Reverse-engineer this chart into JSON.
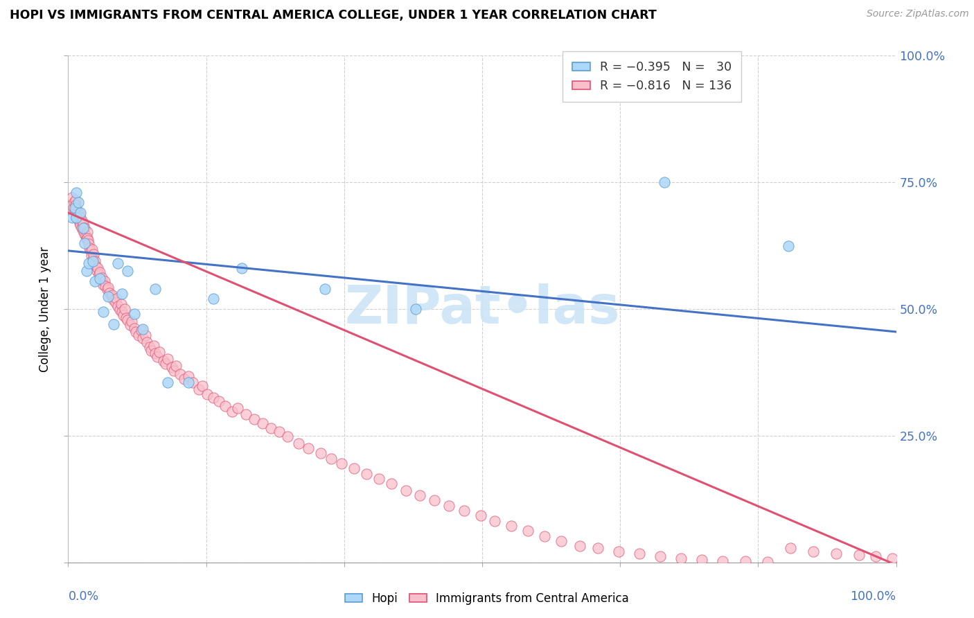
{
  "title": "HOPI VS IMMIGRANTS FROM CENTRAL AMERICA COLLEGE, UNDER 1 YEAR CORRELATION CHART",
  "source": "Source: ZipAtlas.com",
  "ylabel": "College, Under 1 year",
  "color_hopi_fill": "#add8f7",
  "color_hopi_edge": "#5b9bd5",
  "color_imm_fill": "#f9c0cb",
  "color_imm_edge": "#e05070",
  "color_line_hopi": "#4472c4",
  "color_line_imm": "#e05070",
  "color_right_axis": "#4472c4",
  "color_grid": "#d0d0d0",
  "watermark_color": "#cce4f5",
  "hopi_x": [
    0.005,
    0.008,
    0.01,
    0.01,
    0.012,
    0.015,
    0.018,
    0.02,
    0.022,
    0.025,
    0.03,
    0.032,
    0.038,
    0.042,
    0.048,
    0.055,
    0.06,
    0.065,
    0.072,
    0.08,
    0.09,
    0.105,
    0.12,
    0.145,
    0.175,
    0.21,
    0.31,
    0.42,
    0.72,
    0.87
  ],
  "hopi_y": [
    0.68,
    0.7,
    0.73,
    0.68,
    0.71,
    0.69,
    0.66,
    0.63,
    0.575,
    0.59,
    0.595,
    0.555,
    0.56,
    0.495,
    0.525,
    0.47,
    0.59,
    0.53,
    0.575,
    0.49,
    0.46,
    0.54,
    0.355,
    0.355,
    0.52,
    0.58,
    0.54,
    0.5,
    0.75,
    0.625
  ],
  "imm_x": [
    0.005,
    0.006,
    0.007,
    0.008,
    0.009,
    0.009,
    0.01,
    0.01,
    0.011,
    0.012,
    0.013,
    0.013,
    0.014,
    0.015,
    0.015,
    0.016,
    0.017,
    0.018,
    0.018,
    0.019,
    0.02,
    0.02,
    0.021,
    0.022,
    0.023,
    0.023,
    0.024,
    0.025,
    0.026,
    0.027,
    0.028,
    0.029,
    0.03,
    0.031,
    0.032,
    0.033,
    0.035,
    0.036,
    0.037,
    0.038,
    0.04,
    0.041,
    0.042,
    0.044,
    0.045,
    0.047,
    0.048,
    0.05,
    0.052,
    0.053,
    0.055,
    0.057,
    0.058,
    0.06,
    0.062,
    0.064,
    0.065,
    0.067,
    0.068,
    0.07,
    0.072,
    0.075,
    0.077,
    0.08,
    0.082,
    0.085,
    0.088,
    0.09,
    0.093,
    0.095,
    0.098,
    0.1,
    0.103,
    0.105,
    0.108,
    0.11,
    0.115,
    0.118,
    0.12,
    0.125,
    0.128,
    0.13,
    0.135,
    0.14,
    0.145,
    0.15,
    0.158,
    0.162,
    0.168,
    0.175,
    0.182,
    0.19,
    0.198,
    0.205,
    0.215,
    0.225,
    0.235,
    0.245,
    0.255,
    0.265,
    0.278,
    0.29,
    0.305,
    0.318,
    0.33,
    0.345,
    0.36,
    0.375,
    0.39,
    0.408,
    0.425,
    0.442,
    0.46,
    0.478,
    0.498,
    0.515,
    0.535,
    0.555,
    0.575,
    0.595,
    0.618,
    0.64,
    0.665,
    0.69,
    0.715,
    0.74,
    0.765,
    0.79,
    0.818,
    0.845,
    0.872,
    0.9,
    0.928,
    0.955,
    0.975,
    0.995
  ],
  "imm_y": [
    0.72,
    0.7,
    0.71,
    0.695,
    0.715,
    0.705,
    0.698,
    0.68,
    0.692,
    0.685,
    0.675,
    0.688,
    0.67,
    0.665,
    0.68,
    0.66,
    0.672,
    0.655,
    0.668,
    0.658,
    0.648,
    0.66,
    0.645,
    0.638,
    0.652,
    0.64,
    0.635,
    0.628,
    0.62,
    0.615,
    0.605,
    0.618,
    0.598,
    0.608,
    0.595,
    0.585,
    0.575,
    0.58,
    0.568,
    0.572,
    0.558,
    0.562,
    0.548,
    0.555,
    0.545,
    0.538,
    0.542,
    0.532,
    0.525,
    0.528,
    0.518,
    0.512,
    0.52,
    0.505,
    0.498,
    0.51,
    0.495,
    0.488,
    0.5,
    0.482,
    0.478,
    0.468,
    0.475,
    0.462,
    0.455,
    0.448,
    0.458,
    0.442,
    0.448,
    0.435,
    0.425,
    0.418,
    0.428,
    0.412,
    0.405,
    0.415,
    0.398,
    0.392,
    0.402,
    0.385,
    0.378,
    0.388,
    0.372,
    0.362,
    0.368,
    0.355,
    0.342,
    0.348,
    0.332,
    0.325,
    0.318,
    0.308,
    0.298,
    0.305,
    0.292,
    0.282,
    0.275,
    0.265,
    0.258,
    0.248,
    0.235,
    0.225,
    0.215,
    0.205,
    0.195,
    0.185,
    0.175,
    0.165,
    0.155,
    0.142,
    0.132,
    0.122,
    0.112,
    0.102,
    0.092,
    0.082,
    0.072,
    0.062,
    0.052,
    0.042,
    0.032,
    0.028,
    0.022,
    0.018,
    0.012,
    0.008,
    0.005,
    0.003,
    0.002,
    0.001,
    0.028,
    0.022,
    0.018,
    0.015,
    0.012,
    0.008
  ],
  "line_hopi_x0": 0.0,
  "line_hopi_x1": 1.0,
  "line_hopi_y0": 0.615,
  "line_hopi_y1": 0.455,
  "line_imm_x0": 0.0,
  "line_imm_x1": 1.0,
  "line_imm_y0": 0.69,
  "line_imm_y1": -0.005,
  "xlim": [
    0.0,
    1.0
  ],
  "ylim": [
    0.0,
    1.0
  ],
  "yticks": [
    0.0,
    0.25,
    0.5,
    0.75,
    1.0
  ],
  "xticks": [
    0.0,
    0.1667,
    0.3333,
    0.5,
    0.6667,
    0.8333,
    1.0
  ]
}
